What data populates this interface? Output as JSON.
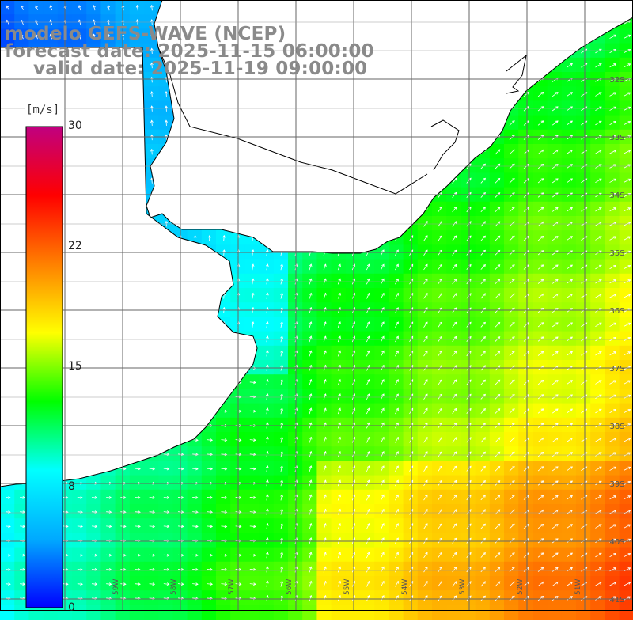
{
  "title": {
    "line1": "modelo GEFS-WAVE (NCEP)",
    "line2": "forecast date: 2025-11-15 06:00:00",
    "line3": "valid date: 2025-11-19 09:00:00"
  },
  "colorbar": {
    "unit": "[m/s]",
    "ticks": [
      "30",
      "22",
      "15",
      "8",
      "0"
    ],
    "tick_values": [
      30,
      22,
      15,
      8,
      0
    ],
    "range": [
      0,
      30
    ],
    "stops": [
      "#0000ff",
      "#00aaff",
      "#00ffff",
      "#00ff00",
      "#ffff00",
      "#ff8000",
      "#ff0000",
      "#c00080"
    ]
  },
  "map": {
    "lat_labels": [
      "32S",
      "33S",
      "34S",
      "35S",
      "36S",
      "37S",
      "38S",
      "39S",
      "40S",
      "41S"
    ],
    "lon_labels": [
      "59W",
      "58W",
      "57W",
      "56W",
      "55W",
      "54W",
      "53W",
      "52W",
      "51W"
    ],
    "field": "wind speed and direction",
    "land_color": "#ffffff",
    "grid_color": "#666666"
  }
}
